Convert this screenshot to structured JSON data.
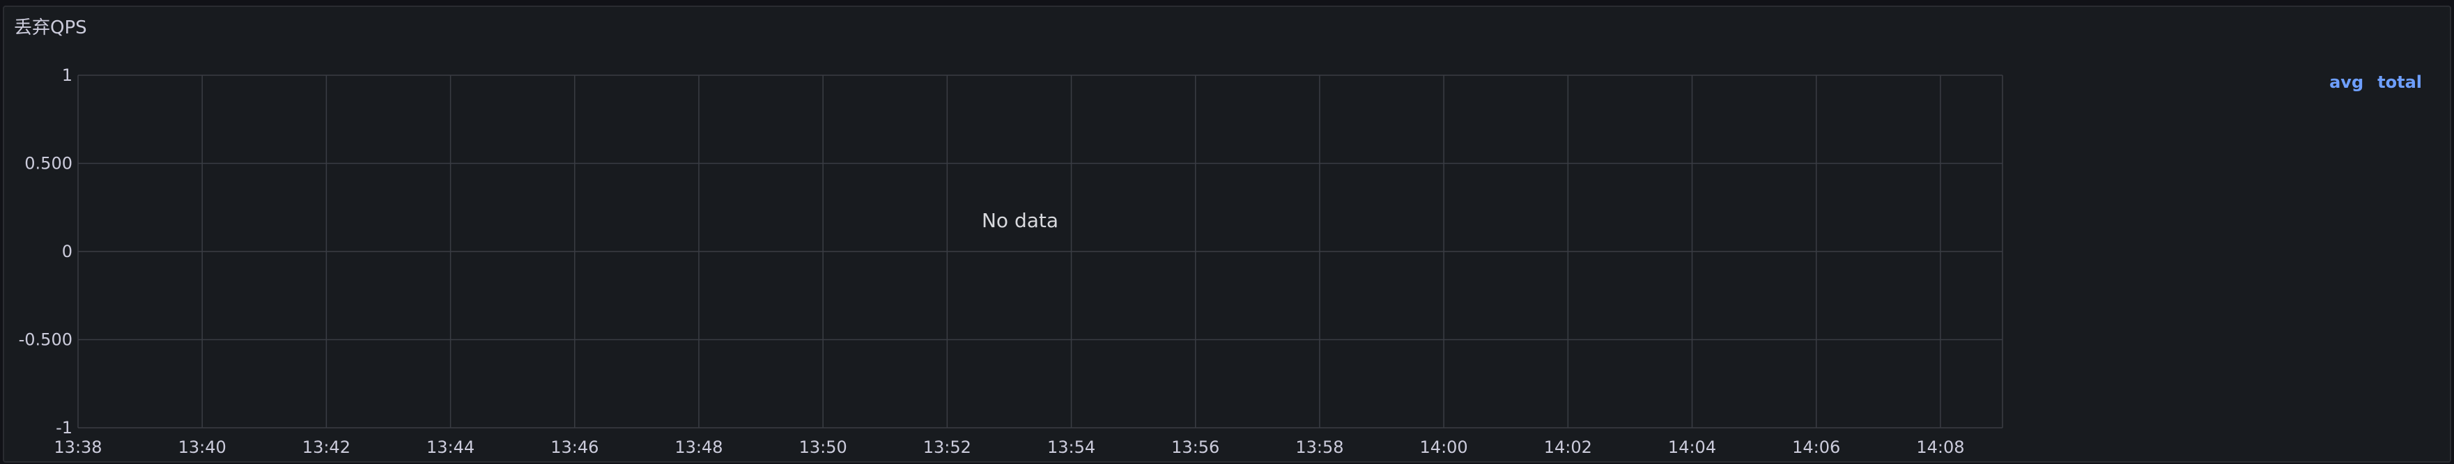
{
  "panel": {
    "title": "丢弃QPS",
    "empty_message": "No data"
  },
  "legend": {
    "columns": [
      "avg",
      "total"
    ],
    "color": "#6e9fff"
  },
  "chart_data": {
    "type": "line",
    "title": "丢弃QPS",
    "series": [],
    "x_ticks": [
      "13:38",
      "13:40",
      "13:42",
      "13:44",
      "13:46",
      "13:48",
      "13:50",
      "13:52",
      "13:54",
      "13:56",
      "13:58",
      "14:00",
      "14:02",
      "14:04",
      "14:06",
      "14:08"
    ],
    "y_ticks": [
      "1",
      "0.500",
      "0",
      "-0.500",
      "-1"
    ],
    "ylim": [
      -1,
      1
    ],
    "xlim": [
      "13:38",
      "14:09"
    ],
    "grid": true,
    "legend_position": "right"
  }
}
